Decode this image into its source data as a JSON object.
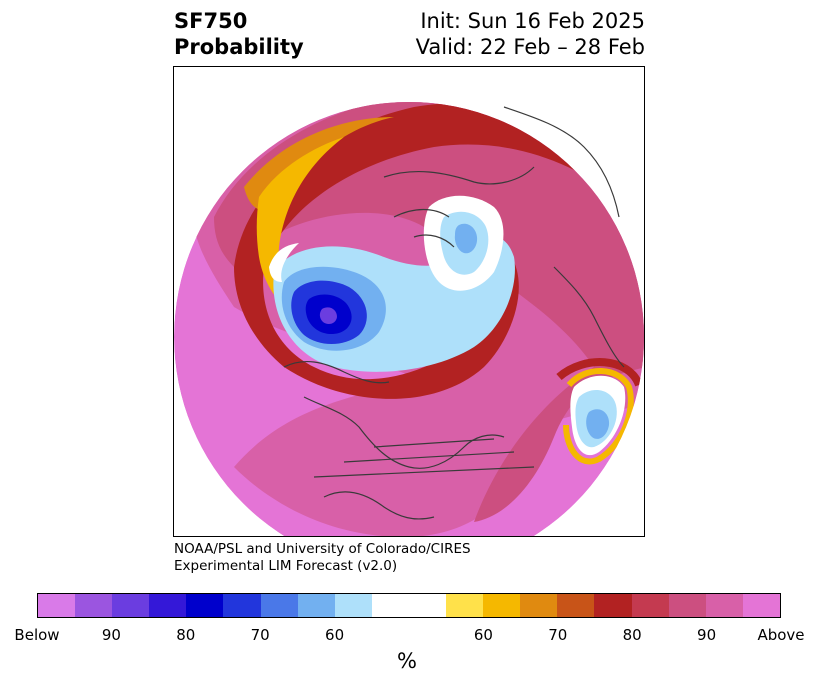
{
  "title": {
    "left_line1": "SF750",
    "left_line2": "Probability",
    "right_line1": "Init: Sun 16 Feb 2025",
    "right_line2": "Valid: 22 Feb – 28 Feb"
  },
  "credit": {
    "line1": "NOAA/PSL and University of Colorado/CIRES",
    "line2": "Experimental LIM Forecast (v2.0)"
  },
  "colorbar": {
    "unit": "%",
    "colors_below": [
      "#d97ae8",
      "#9b55e0",
      "#6b3de0",
      "#3418d8",
      "#0000cc",
      "#2236dc",
      "#4a78e8",
      "#72b0f0",
      "#aee0fa"
    ],
    "color_neutral": "#ffffff",
    "colors_above": [
      "#ffe14a",
      "#f5b800",
      "#e08a10",
      "#c85418",
      "#b22222",
      "#c43a50",
      "#cc4f80",
      "#d860a8",
      "#e474d6"
    ],
    "tick_labels": [
      "Below",
      "90",
      "80",
      "70",
      "60",
      "60",
      "70",
      "80",
      "90",
      "Above"
    ]
  },
  "map": {
    "description_colors": {
      "above_high": "#e474d6",
      "above_mid": "#cc4f80",
      "above_low": "#b22222",
      "below_high": "#0000cc",
      "below_low": "#aee0fa"
    }
  }
}
